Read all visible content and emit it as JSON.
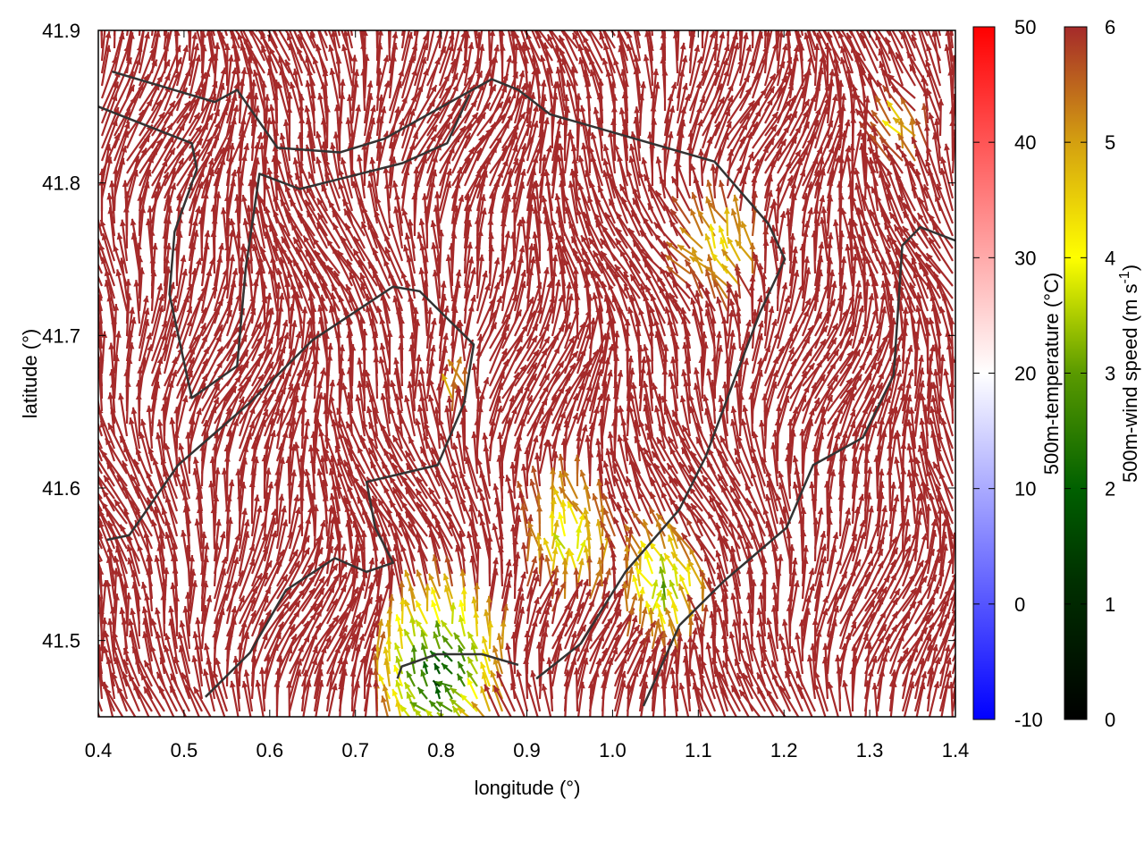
{
  "chart_data": {
    "type": "vector-field",
    "xlabel": "longitude (°)",
    "ylabel": "latitude (°)",
    "xlim": [
      0.4,
      1.4
    ],
    "ylim": [
      41.45,
      41.9
    ],
    "xticks": [
      "0.4",
      "0.5",
      "0.6",
      "0.7",
      "0.8",
      "0.9",
      "1.0",
      "1.1",
      "1.2",
      "1.3",
      "1.4"
    ],
    "xtick_values": [
      0.4,
      0.5,
      0.6,
      0.7,
      0.8,
      0.9,
      1.0,
      1.1,
      1.2,
      1.3,
      1.4
    ],
    "yticks": [
      "41.5",
      "41.6",
      "41.7",
      "41.8",
      "41.9"
    ],
    "ytick_values": [
      41.5,
      41.6,
      41.7,
      41.8,
      41.9
    ],
    "vector_color_default": "#a52a2a",
    "prevailing_direction": "north",
    "max_speed": 6,
    "slow_wind_regions": [
      {
        "lon": 1.13,
        "lat": 41.75,
        "speed": 4.0,
        "radius": 0.06
      },
      {
        "lon": 0.95,
        "lat": 41.56,
        "speed": 3.6,
        "radius": 0.06
      },
      {
        "lon": 1.06,
        "lat": 41.53,
        "speed": 3.0,
        "radius": 0.05
      },
      {
        "lon": 0.8,
        "lat": 41.475,
        "speed": 1.5,
        "radius": 0.05
      },
      {
        "lon": 1.34,
        "lat": 41.83,
        "speed": 4.2,
        "radius": 0.04
      },
      {
        "lon": 0.82,
        "lat": 41.66,
        "speed": 4.6,
        "radius": 0.03
      }
    ],
    "contours": [
      [
        [
          0.416,
          41.873
        ],
        [
          0.536,
          41.853
        ],
        [
          0.562,
          41.861
        ],
        [
          0.609,
          41.823
        ],
        [
          0.682,
          41.82
        ],
        [
          0.734,
          41.829
        ],
        [
          0.817,
          41.855
        ],
        [
          0.859,
          41.868
        ],
        [
          0.89,
          41.861
        ],
        [
          0.927,
          41.845
        ],
        [
          1.119,
          41.814
        ],
        [
          1.182,
          41.773
        ],
        [
          1.201,
          41.75
        ],
        [
          1.172,
          41.715
        ],
        [
          1.14,
          41.668
        ],
        [
          1.109,
          41.621
        ],
        [
          1.078,
          41.586
        ],
        [
          1.015,
          41.545
        ],
        [
          0.963,
          41.498
        ],
        [
          0.911,
          41.475
        ]
      ],
      [
        [
          0.4,
          41.85
        ],
        [
          0.509,
          41.826
        ],
        [
          0.515,
          41.809
        ],
        [
          0.489,
          41.768
        ],
        [
          0.483,
          41.727
        ],
        [
          0.509,
          41.659
        ],
        [
          0.562,
          41.68
        ],
        [
          0.572,
          41.744
        ],
        [
          0.588,
          41.806
        ],
        [
          0.635,
          41.796
        ],
        [
          0.755,
          41.813
        ],
        [
          0.807,
          41.826
        ],
        [
          0.833,
          41.858
        ]
      ],
      [
        [
          0.41,
          41.566
        ],
        [
          0.436,
          41.569
        ],
        [
          0.493,
          41.615
        ],
        [
          0.577,
          41.656
        ],
        [
          0.65,
          41.697
        ],
        [
          0.744,
          41.732
        ],
        [
          0.775,
          41.729
        ],
        [
          0.838,
          41.694
        ],
        [
          0.827,
          41.656
        ],
        [
          0.796,
          41.615
        ],
        [
          0.713,
          41.604
        ],
        [
          0.723,
          41.574
        ],
        [
          0.744,
          41.551
        ],
        [
          0.713,
          41.545
        ],
        [
          0.676,
          41.554
        ],
        [
          0.619,
          41.533
        ],
        [
          0.577,
          41.492
        ],
        [
          0.525,
          41.463
        ]
      ],
      [
        [
          1.401,
          41.762
        ],
        [
          1.359,
          41.771
        ],
        [
          1.338,
          41.759
        ],
        [
          1.328,
          41.674
        ],
        [
          1.292,
          41.633
        ],
        [
          1.234,
          41.615
        ],
        [
          1.203,
          41.574
        ],
        [
          1.13,
          41.539
        ],
        [
          1.078,
          41.51
        ],
        [
          1.036,
          41.457
        ]
      ],
      [
        [
          0.749,
          41.475
        ],
        [
          0.754,
          41.483
        ],
        [
          0.795,
          41.491
        ],
        [
          0.848,
          41.491
        ],
        [
          0.89,
          41.484
        ]
      ]
    ],
    "colorbars": [
      {
        "label": "500m-temperature (°C)",
        "min": -10,
        "max": 50,
        "ticks": [
          "-10",
          "0",
          "10",
          "20",
          "30",
          "40",
          "50"
        ],
        "tick_values": [
          -10,
          0,
          10,
          20,
          30,
          40,
          50
        ],
        "colors": [
          "#0000ff",
          "#ffffff",
          "#ff0000"
        ]
      },
      {
        "label": "500m-wind speed (m s",
        "label_sup": "-1",
        "label_end": ")",
        "min": 0,
        "max": 6,
        "ticks": [
          "0",
          "1",
          "2",
          "3",
          "4",
          "5",
          "6"
        ],
        "tick_values": [
          0,
          1,
          2,
          3,
          4,
          5,
          6
        ],
        "colors": [
          "#000000",
          "#004d00",
          "#006000",
          "#5a9a00",
          "#ffff00",
          "#d4a010",
          "#a52a2a"
        ]
      }
    ]
  }
}
